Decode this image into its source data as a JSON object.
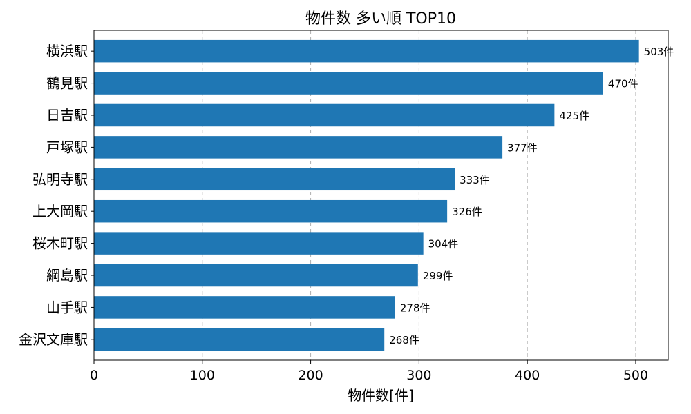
{
  "chart_data": {
    "type": "bar",
    "orientation": "horizontal",
    "title": "物件数 多い順 TOP10",
    "xlabel": "物件数[件]",
    "ylabel": "",
    "categories": [
      "横浜駅",
      "鶴見駅",
      "日吉駅",
      "戸塚駅",
      "弘明寺駅",
      "上大岡駅",
      "桜木町駅",
      "綱島駅",
      "山手駅",
      "金沢文庫駅"
    ],
    "values": [
      503,
      470,
      425,
      377,
      333,
      326,
      304,
      299,
      278,
      268
    ],
    "data_labels": [
      "503件",
      "470件",
      "425件",
      "377件",
      "333件",
      "326件",
      "304件",
      "299件",
      "278件",
      "268件"
    ],
    "xlim": [
      0,
      530
    ],
    "xticks": [
      0,
      100,
      200,
      300,
      400,
      500
    ],
    "grid": "x-dashed",
    "bar_color": "#1f77b4"
  }
}
